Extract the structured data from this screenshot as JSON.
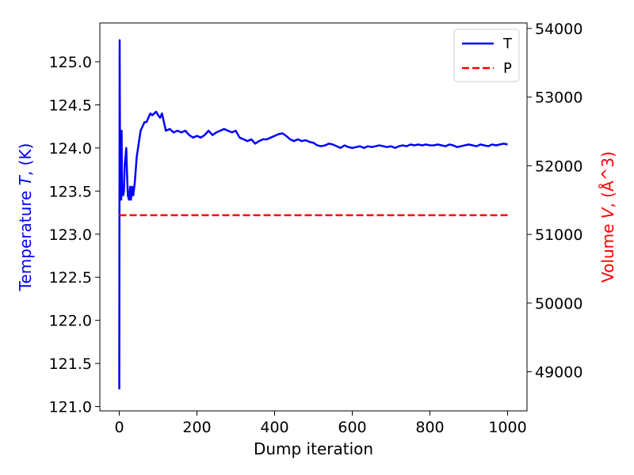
{
  "chart_data": {
    "type": "line",
    "xlabel": "Dump iteration",
    "ylabel_left": "Temperature T, (K)",
    "ylabel_left_parts": [
      "Temperature ",
      "T",
      ", (K)"
    ],
    "ylabel_right": "Volume V, (Å^3)",
    "ylabel_right_parts": [
      "Volume ",
      "V",
      ", (Å^3)"
    ],
    "xlim": [
      -50,
      1050
    ],
    "ylim_left": [
      120.95,
      125.45
    ],
    "ylim_right": [
      48430,
      54080
    ],
    "x_ticks": [
      0,
      200,
      400,
      600,
      800,
      1000
    ],
    "y_ticks_left": [
      "121.0",
      "121.5",
      "122.0",
      "122.5",
      "123.0",
      "123.5",
      "124.0",
      "124.5",
      "125.0"
    ],
    "y_ticks_right": [
      49000,
      50000,
      51000,
      52000,
      53000,
      54000
    ],
    "grid": false,
    "legend_position": "upper-right",
    "left_axis_color": "#0000ff",
    "right_axis_color": "#ff0000",
    "series": [
      {
        "name": "T",
        "axis": "left",
        "color": "#0000ff",
        "style": "solid",
        "x": [
          0,
          1,
          2,
          3,
          4,
          5,
          6,
          7,
          8,
          10,
          12,
          14,
          16,
          18,
          20,
          22,
          25,
          28,
          30,
          33,
          36,
          40,
          45,
          50,
          55,
          60,
          65,
          70,
          75,
          80,
          85,
          90,
          95,
          100,
          105,
          110,
          115,
          120,
          130,
          140,
          150,
          160,
          170,
          180,
          190,
          200,
          210,
          220,
          230,
          240,
          250,
          260,
          270,
          280,
          290,
          300,
          310,
          320,
          330,
          340,
          350,
          360,
          370,
          380,
          390,
          400,
          410,
          420,
          430,
          440,
          450,
          460,
          470,
          480,
          490,
          500,
          510,
          520,
          530,
          540,
          550,
          560,
          570,
          580,
          590,
          600,
          610,
          620,
          630,
          640,
          650,
          660,
          670,
          680,
          690,
          700,
          710,
          720,
          730,
          740,
          750,
          760,
          770,
          780,
          790,
          800,
          810,
          820,
          830,
          840,
          850,
          860,
          870,
          880,
          890,
          900,
          910,
          920,
          930,
          940,
          950,
          960,
          970,
          980,
          990,
          1000
        ],
        "y": [
          121.2,
          125.25,
          123.8,
          123.45,
          124.1,
          123.4,
          124.2,
          123.6,
          123.5,
          123.45,
          123.5,
          123.8,
          123.9,
          124.0,
          123.7,
          123.45,
          123.4,
          123.55,
          123.4,
          123.55,
          123.45,
          123.6,
          123.9,
          124.05,
          124.2,
          124.25,
          124.3,
          124.3,
          124.35,
          124.4,
          124.38,
          124.4,
          124.42,
          124.38,
          124.35,
          124.4,
          124.3,
          124.2,
          124.22,
          124.18,
          124.2,
          124.18,
          124.2,
          124.15,
          124.12,
          124.14,
          124.12,
          124.15,
          124.2,
          124.15,
          124.18,
          124.2,
          124.22,
          124.2,
          124.18,
          124.2,
          124.12,
          124.1,
          124.08,
          124.1,
          124.05,
          124.08,
          124.1,
          124.1,
          124.12,
          124.14,
          124.16,
          124.17,
          124.14,
          124.1,
          124.08,
          124.1,
          124.08,
          124.09,
          124.07,
          124.06,
          124.03,
          124.02,
          124.03,
          124.05,
          124.04,
          124.02,
          124.0,
          124.03,
          124.01,
          124.0,
          124.01,
          124.02,
          124.0,
          124.02,
          124.01,
          124.02,
          124.03,
          124.02,
          124.01,
          124.02,
          124.0,
          124.02,
          124.03,
          124.02,
          124.04,
          124.03,
          124.04,
          124.03,
          124.04,
          124.03,
          124.03,
          124.04,
          124.03,
          124.02,
          124.04,
          124.03,
          124.01,
          124.02,
          124.03,
          124.04,
          124.03,
          124.02,
          124.04,
          124.03,
          124.02,
          124.04,
          124.03,
          124.04,
          124.05,
          124.04
        ]
      },
      {
        "name": "P",
        "axis": "left",
        "color": "#ff0000",
        "style": "dashed",
        "x": [
          0,
          1000
        ],
        "y": [
          123.22,
          123.22
        ]
      }
    ]
  }
}
